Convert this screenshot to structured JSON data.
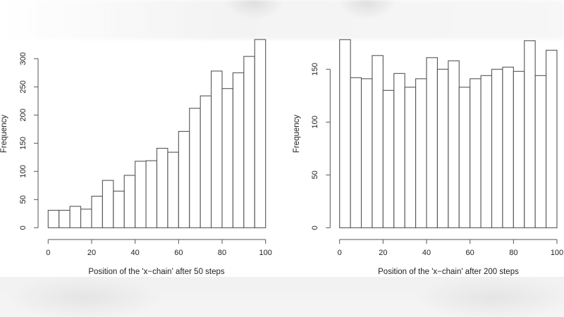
{
  "chart_data": [
    {
      "type": "bar",
      "subtype": "histogram",
      "title": "",
      "xlabel": "Position of the 'x−chain' after 50 steps",
      "ylabel": "Frequency",
      "bin_edges": [
        0,
        5,
        10,
        15,
        20,
        25,
        30,
        35,
        40,
        45,
        50,
        55,
        60,
        65,
        70,
        75,
        80,
        85,
        90,
        95,
        100
      ],
      "values": [
        31,
        31,
        38,
        33,
        56,
        84,
        65,
        93,
        118,
        119,
        141,
        134,
        171,
        212,
        234,
        278,
        247,
        275,
        304,
        334
      ],
      "xlim": [
        0,
        100
      ],
      "ylim": [
        0,
        340
      ],
      "x_ticks": [
        0,
        20,
        40,
        60,
        80,
        100
      ],
      "y_ticks": [
        0,
        50,
        100,
        150,
        200,
        250,
        300
      ],
      "grid": false,
      "legend": null
    },
    {
      "type": "bar",
      "subtype": "histogram",
      "title": "",
      "xlabel": "Position of the 'x−chain' after 200 steps",
      "ylabel": "Frequency",
      "bin_edges": [
        0,
        5,
        10,
        15,
        20,
        25,
        30,
        35,
        40,
        45,
        50,
        55,
        60,
        65,
        70,
        75,
        80,
        85,
        90,
        95,
        100
      ],
      "values": [
        178,
        142,
        141,
        163,
        130,
        146,
        133,
        141,
        161,
        150,
        158,
        133,
        141,
        144,
        150,
        152,
        148,
        177,
        144,
        168
      ],
      "xlim": [
        0,
        100
      ],
      "ylim": [
        0,
        180
      ],
      "x_ticks": [
        0,
        20,
        40,
        60,
        80,
        100
      ],
      "y_ticks": [
        0,
        50,
        100,
        150
      ],
      "grid": false,
      "legend": null
    }
  ],
  "colors": {
    "bar_fill": "#ffffff",
    "bar_stroke": "#555555",
    "axis": "#555555",
    "text": "#222222"
  }
}
